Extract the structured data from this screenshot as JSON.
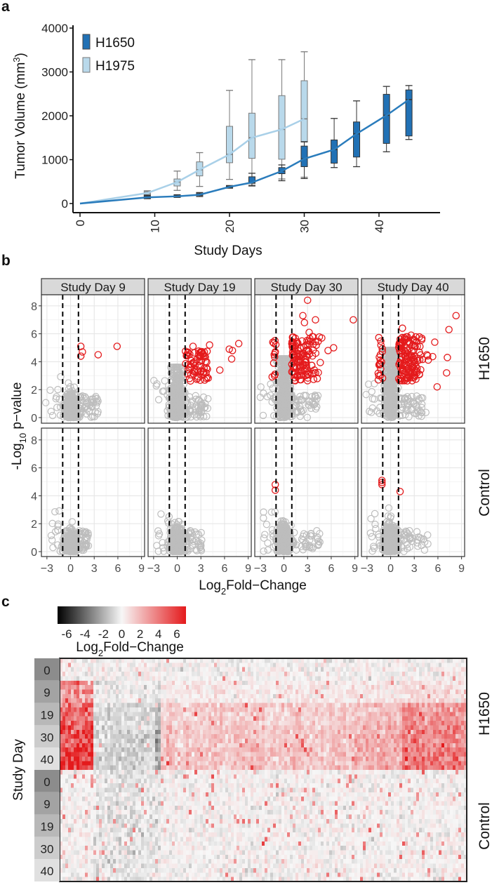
{
  "panel_labels": {
    "a": "a",
    "b": "b",
    "c": "c"
  },
  "chart_data": [
    {
      "type": "box",
      "panel": "a",
      "xlabel": "Study Days",
      "ylabel": "Tumor Volume (mm",
      "ylabel_sup": "3",
      "ylabel_close": ")",
      "xticks": [
        "0",
        "10",
        "20",
        "30",
        "40"
      ],
      "yticks": [
        "0",
        "1000",
        "2000",
        "3000",
        "4000"
      ],
      "ylim": [
        0,
        4000
      ],
      "legend_position": "top-left",
      "series": [
        {
          "name": "H1975",
          "box_color": "#b9d9eb",
          "line_color": "#a9d0e8",
          "days": [
            0,
            9,
            13,
            16,
            20,
            23,
            27,
            30
          ],
          "median": [
            0,
            240,
            490,
            770,
            1120,
            1500,
            1690,
            1930
          ],
          "q1": [
            null,
            200,
            400,
            630,
            930,
            1030,
            1010,
            1400
          ],
          "q3": [
            null,
            270,
            560,
            950,
            1760,
            2060,
            2460,
            2800
          ],
          "whisker_low": [
            null,
            180,
            300,
            390,
            550,
            420,
            560,
            600
          ],
          "whisker_high": [
            null,
            290,
            740,
            1160,
            2580,
            3280,
            3280,
            3460
          ]
        },
        {
          "name": "H1650",
          "box_color": "#2171b5",
          "line_color": "#2a7cbc",
          "days": [
            0,
            9,
            13,
            16,
            20,
            23,
            27,
            30,
            34,
            37,
            41,
            44
          ],
          "median": [
            0,
            140,
            165,
            200,
            380,
            480,
            740,
            1020,
            1230,
            1590,
            2010,
            2370
          ],
          "q1": [
            null,
            120,
            150,
            180,
            360,
            460,
            680,
            840,
            920,
            1060,
            1370,
            1540
          ],
          "q3": [
            null,
            170,
            185,
            230,
            400,
            610,
            820,
            1310,
            1450,
            1860,
            2490,
            2590
          ],
          "whisker_low": [
            null,
            110,
            140,
            160,
            350,
            400,
            520,
            570,
            820,
            840,
            1180,
            1460
          ],
          "whisker_high": [
            null,
            190,
            200,
            250,
            410,
            690,
            880,
            1410,
            1940,
            2340,
            2670,
            2690
          ]
        }
      ]
    },
    {
      "type": "scatter",
      "panel": "b",
      "facet_columns": [
        "Study Day 9",
        "Study Day 19",
        "Study Day 30",
        "Study Day 40"
      ],
      "facet_rows": [
        "H1650",
        "Control"
      ],
      "xlabel_parts": [
        "Log",
        "2",
        "Fold−Change"
      ],
      "ylabel_parts": [
        "-Log",
        "10",
        " p−value"
      ],
      "xticks": [
        -3,
        0,
        3,
        6,
        9
      ],
      "xtick_labels": [
        "−3",
        "0",
        "3",
        "6",
        "9"
      ],
      "yticks": [
        0,
        2,
        4,
        6,
        8
      ],
      "ytick_labels": [
        "0",
        "2",
        "4",
        "6",
        "8"
      ],
      "xlim": [
        -3.7,
        9.3
      ],
      "ylim": [
        -0.45,
        8.8
      ],
      "threshold_lines_x": [
        -1,
        1
      ],
      "colors": {
        "significant": "#e41a1c",
        "not_significant": "#bdbdbd"
      },
      "highlighted_points": [
        [
          [
            1.3,
            5.1
          ],
          [
            1.5,
            4.7
          ],
          [
            1.3,
            4.4
          ],
          [
            3.5,
            4.5
          ],
          [
            5.9,
            5.1
          ]
        ],
        [
          [
            6.6,
            4.9
          ],
          [
            7.0,
            4.8
          ],
          [
            7.8,
            5.3
          ],
          [
            6.9,
            4.2
          ],
          [
            5.4,
            3.4
          ],
          [
            4.1,
            5.2
          ],
          [
            2.0,
            5.1
          ]
        ],
        [
          [
            3.0,
            8.4
          ],
          [
            2.4,
            7.3
          ],
          [
            2.6,
            6.8
          ],
          [
            4.0,
            7.0
          ],
          [
            8.8,
            7.0
          ],
          [
            3.2,
            6.1
          ],
          [
            4.8,
            5.7
          ],
          [
            6.3,
            5.0
          ],
          [
            5.6,
            4.8
          ],
          [
            3.8,
            3.2
          ],
          [
            -1.3,
            3.9
          ],
          [
            -1.2,
            3.0
          ]
        ],
        [
          [
            8.3,
            7.3
          ],
          [
            7.4,
            6.3
          ],
          [
            1.5,
            6.4
          ],
          [
            2.6,
            5.9
          ],
          [
            2.9,
            5.6
          ],
          [
            5.6,
            5.4
          ],
          [
            4.6,
            4.5
          ],
          [
            7.2,
            4.3
          ],
          [
            7.1,
            3.2
          ],
          [
            5.9,
            2.2
          ],
          [
            -1.3,
            4.5
          ],
          [
            -1.5,
            3.0
          ]
        ],
        [],
        [],
        [
          [
            -1.1,
            4.8
          ],
          [
            -1.1,
            4.4
          ]
        ],
        [
          [
            -1.1,
            5.1
          ],
          [
            -1.1,
            4.95
          ],
          [
            -1.1,
            4.8
          ],
          [
            1.2,
            4.3
          ]
        ]
      ]
    },
    {
      "type": "heatmap",
      "panel": "c",
      "ylabel": "Study Day",
      "row_groups": [
        "H1650",
        "Control"
      ],
      "days": [
        "0",
        "9",
        "19",
        "30",
        "40"
      ],
      "colorbar": {
        "title_parts": [
          "Log",
          "2",
          "Fold−Change"
        ],
        "range": [
          -7,
          7
        ],
        "ticks": [
          -6,
          -4,
          -2,
          0,
          2,
          4,
          6
        ],
        "tick_labels": [
          "-6",
          "-4",
          "-2",
          "0",
          "2",
          "4",
          "6"
        ],
        "low_color": "#000000",
        "mid_color": "#f7f7f7",
        "high_color": "#e41a1c"
      },
      "day_block_colors": [
        "#8c8c8c",
        "#a3a3a3",
        "#b8b8b8",
        "#cccccc",
        "#e0e0e0"
      ]
    }
  ]
}
